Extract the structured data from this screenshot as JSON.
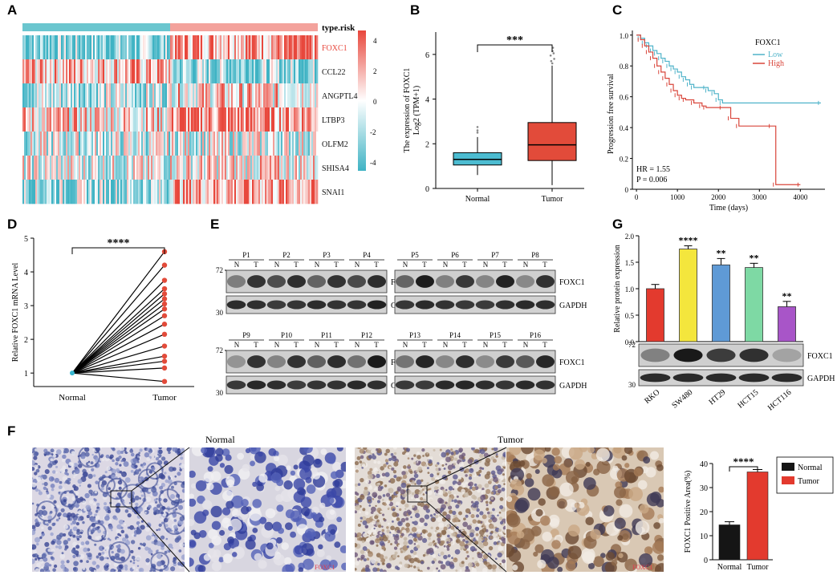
{
  "panel_labels": {
    "A": "A",
    "B": "B",
    "C": "C",
    "D": "D",
    "E": "E",
    "F": "F",
    "G": "G"
  },
  "heatmap": {
    "annotation_label": "type.risk",
    "genes": [
      "FOXC1",
      "CCL22",
      "ANGPTL4",
      "LTBP3",
      "OLFM2",
      "SHISA4",
      "SNAI1"
    ],
    "highlight_gene_color": "#e8473c",
    "colorbar_ticks": [
      "4",
      "2",
      "0",
      "-2",
      "-4"
    ],
    "color_high": "#e8473c",
    "color_mid": "#ffffff",
    "color_low": "#3fb3c4",
    "low_risk_color": "#6bc6cf",
    "high_risk_color": "#f3a29c"
  },
  "chart_data": [
    {
      "panel": "B",
      "type": "box",
      "ylabel_line1": "The expression of FOXC1",
      "ylabel_line2": "Log2 (TPM+1)",
      "categories": [
        "Normal",
        "Tumor"
      ],
      "ylim": [
        0,
        7
      ],
      "yticks": [
        "0",
        "2",
        "4",
        "6"
      ],
      "boxes": [
        {
          "name": "Normal",
          "q1": 1.05,
          "median": 1.3,
          "q3": 1.6,
          "whisker_low": 0.6,
          "whisker_high": 2.3,
          "outliers": [
            2.5,
            2.6,
            2.75
          ],
          "color": "#4cbcd1"
        },
        {
          "name": "Tumor",
          "q1": 1.25,
          "median": 1.95,
          "q3": 2.95,
          "whisker_low": 0.15,
          "whisker_high": 5.5,
          "outliers": [
            5.6,
            5.7,
            5.8,
            5.95,
            6.05,
            6.15,
            6.3
          ],
          "color": "#e24b3a"
        }
      ],
      "significance": "***"
    },
    {
      "panel": "C",
      "type": "line",
      "ylabel": "Progression free survival",
      "xlabel": "Time (days)",
      "xticks": [
        "0",
        "1000",
        "2000",
        "3000",
        "4000"
      ],
      "yticks": [
        "0",
        "0.2",
        "0.4",
        "0.6",
        "0.8",
        "1.0"
      ],
      "xlim": [
        -100,
        4600
      ],
      "ylim": [
        0,
        1.03
      ],
      "legend_title": "FOXC1",
      "series": [
        {
          "name": "Low",
          "color": "#4fb3c9",
          "points": [
            [
              0,
              1.0
            ],
            [
              100,
              0.98
            ],
            [
              200,
              0.95
            ],
            [
              300,
              0.93
            ],
            [
              400,
              0.9
            ],
            [
              500,
              0.88
            ],
            [
              600,
              0.85
            ],
            [
              700,
              0.83
            ],
            [
              800,
              0.8
            ],
            [
              900,
              0.78
            ],
            [
              1000,
              0.76
            ],
            [
              1100,
              0.73
            ],
            [
              1200,
              0.71
            ],
            [
              1300,
              0.68
            ],
            [
              1400,
              0.66
            ],
            [
              1700,
              0.66
            ],
            [
              1750,
              0.64
            ],
            [
              1900,
              0.62
            ],
            [
              2000,
              0.58
            ],
            [
              2100,
              0.56
            ],
            [
              4500,
              0.56
            ]
          ]
        },
        {
          "name": "High",
          "color": "#d9463b",
          "points": [
            [
              0,
              1.0
            ],
            [
              100,
              0.97
            ],
            [
              200,
              0.93
            ],
            [
              300,
              0.89
            ],
            [
              400,
              0.85
            ],
            [
              500,
              0.8
            ],
            [
              600,
              0.76
            ],
            [
              700,
              0.72
            ],
            [
              800,
              0.68
            ],
            [
              900,
              0.64
            ],
            [
              1000,
              0.61
            ],
            [
              1100,
              0.59
            ],
            [
              1200,
              0.58
            ],
            [
              1400,
              0.56
            ],
            [
              1600,
              0.54
            ],
            [
              1700,
              0.53
            ],
            [
              2100,
              0.53
            ],
            [
              2300,
              0.46
            ],
            [
              2500,
              0.41
            ],
            [
              3300,
              0.41
            ],
            [
              3400,
              0.03
            ],
            [
              4000,
              0.03
            ]
          ]
        }
      ],
      "hr_text": "HR = 1.55",
      "p_text": "P = 0.006"
    },
    {
      "panel": "D",
      "type": "paired-dot",
      "ylabel": "Relative FOXC1 mRNA Level",
      "categories": [
        "Normal",
        "Tumor"
      ],
      "ylim": [
        0.6,
        5.0
      ],
      "yticks": [
        "1",
        "2",
        "3",
        "4",
        "5"
      ],
      "normal_value": 1.0,
      "tumor_values": [
        4.6,
        4.2,
        3.75,
        3.5,
        3.35,
        3.2,
        3.05,
        2.9,
        2.7,
        2.45,
        2.15,
        1.8,
        1.5,
        1.35,
        1.15,
        0.75
      ],
      "significance": "****"
    },
    {
      "panel": "G",
      "type": "bar",
      "ylabel": "Relative protein expression",
      "categories": [
        "RKO",
        "SW480",
        "HT29",
        "HCT15",
        "HCT116"
      ],
      "values": [
        1.0,
        1.75,
        1.45,
        1.4,
        0.66
      ],
      "errors": [
        0.08,
        0.06,
        0.12,
        0.08,
        0.1
      ],
      "colors": [
        "#e33a2e",
        "#f4e63d",
        "#5f9ad6",
        "#7ed9a4",
        "#a855c8"
      ],
      "significance": [
        "",
        "****",
        "**",
        "**",
        "**"
      ],
      "ylim": [
        0,
        2.0
      ],
      "yticks": [
        "0.0",
        "0.5",
        "1.0",
        "1.5",
        "2.0"
      ]
    },
    {
      "panel": "F",
      "type": "bar",
      "ylabel": "FOXC1 Positive Area(%)",
      "categories": [
        "Normal",
        "Tumor"
      ],
      "values": [
        14.5,
        36.5
      ],
      "errors": [
        1.3,
        1.0
      ],
      "colors": [
        "#151515",
        "#e33a2e"
      ],
      "ylim": [
        0,
        40
      ],
      "yticks": [
        "0",
        "10",
        "20",
        "30",
        "40"
      ],
      "legend": [
        "Normal",
        "Tumor"
      ],
      "significance": "****"
    }
  ],
  "western_E": {
    "marker_72": "72",
    "marker_30": "30",
    "foxc1_label": "FOXC1",
    "gapdh_label": "GAPDH",
    "N": "N",
    "T": "T",
    "top_left": [
      "P1",
      "P2",
      "P3",
      "P4"
    ],
    "top_right": [
      "P5",
      "P6",
      "P7",
      "P8"
    ],
    "bottom_left": [
      "P9",
      "P10",
      "P11",
      "P12"
    ],
    "bottom_right": [
      "P13",
      "P14",
      "P15",
      "P16"
    ]
  },
  "western_G": {
    "marker_72": "72",
    "marker_30": "30",
    "foxc1_label": "FOXC1",
    "gapdh_label": "GAPDH"
  },
  "ihc_F": {
    "normal_title": "Normal",
    "tumor_title": "Tumor",
    "stain_label": "FOXC1"
  }
}
